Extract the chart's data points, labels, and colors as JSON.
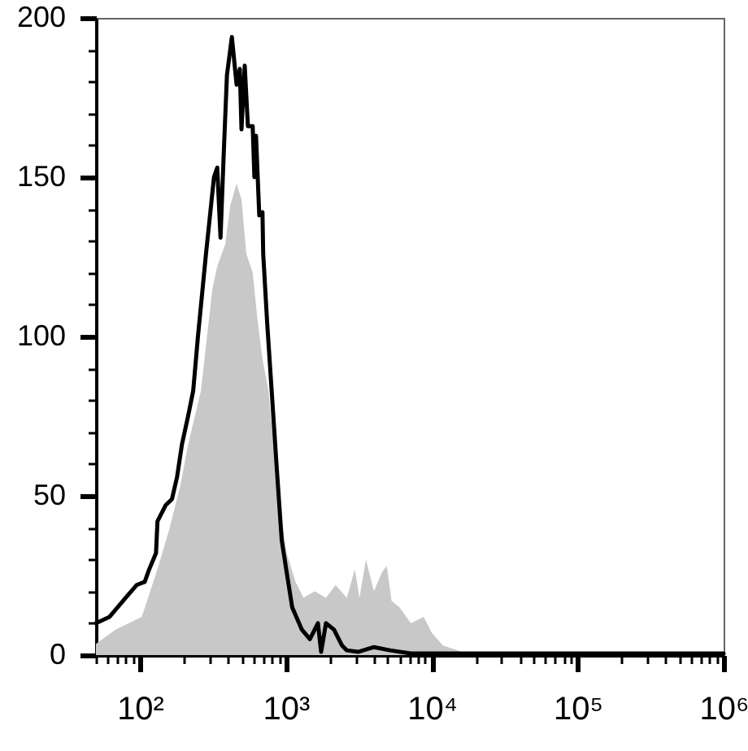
{
  "chart_data": {
    "type": "area",
    "log": "x",
    "xlim": [
      50,
      1000000
    ],
    "ylim": [
      0,
      200
    ],
    "xticks": [
      {
        "value": 50,
        "label": null
      },
      {
        "value": 60,
        "label": null
      },
      {
        "value": 70,
        "label": null
      },
      {
        "value": 80,
        "label": null
      },
      {
        "value": 90,
        "label": null
      },
      {
        "value": 100,
        "label": "10²"
      },
      {
        "value": 200,
        "label": null
      },
      {
        "value": 300,
        "label": null
      },
      {
        "value": 400,
        "label": null
      },
      {
        "value": 500,
        "label": null
      },
      {
        "value": 600,
        "label": null
      },
      {
        "value": 700,
        "label": null
      },
      {
        "value": 800,
        "label": null
      },
      {
        "value": 900,
        "label": null
      },
      {
        "value": 1000,
        "label": "10³"
      },
      {
        "value": 2000,
        "label": null
      },
      {
        "value": 3000,
        "label": null
      },
      {
        "value": 4000,
        "label": null
      },
      {
        "value": 5000,
        "label": null
      },
      {
        "value": 6000,
        "label": null
      },
      {
        "value": 7000,
        "label": null
      },
      {
        "value": 8000,
        "label": null
      },
      {
        "value": 9000,
        "label": null
      },
      {
        "value": 10000,
        "label": "10⁴"
      },
      {
        "value": 20000,
        "label": null
      },
      {
        "value": 30000,
        "label": null
      },
      {
        "value": 40000,
        "label": null
      },
      {
        "value": 50000,
        "label": null
      },
      {
        "value": 60000,
        "label": null
      },
      {
        "value": 70000,
        "label": null
      },
      {
        "value": 80000,
        "label": null
      },
      {
        "value": 90000,
        "label": null
      },
      {
        "value": 100000,
        "label": "10⁵"
      },
      {
        "value": 200000,
        "label": null
      },
      {
        "value": 300000,
        "label": null
      },
      {
        "value": 400000,
        "label": null
      },
      {
        "value": 500000,
        "label": null
      },
      {
        "value": 600000,
        "label": null
      },
      {
        "value": 700000,
        "label": null
      },
      {
        "value": 800000,
        "label": null
      },
      {
        "value": 900000,
        "label": null
      },
      {
        "value": 1000000,
        "label": "10⁶"
      }
    ],
    "yticks": [
      0,
      {
        "value": 10,
        "label": null
      },
      {
        "value": 20,
        "label": null
      },
      {
        "value": 30,
        "label": null
      },
      {
        "value": 40,
        "label": null
      },
      50,
      {
        "value": 60,
        "label": null
      },
      {
        "value": 70,
        "label": null
      },
      {
        "value": 80,
        "label": null
      },
      {
        "value": 90,
        "label": null
      },
      100,
      {
        "value": 110,
        "label": null
      },
      {
        "value": 120,
        "label": null
      },
      {
        "value": 130,
        "label": null
      },
      {
        "value": 140,
        "label": null
      },
      150,
      {
        "value": 160,
        "label": null
      },
      {
        "value": 170,
        "label": null
      },
      {
        "value": 180,
        "label": null
      },
      {
        "value": 190,
        "label": null
      },
      200
    ],
    "series": [
      {
        "color": "#c8c8c8",
        "x": [
          50,
          68,
          103,
          132,
          158,
          189,
          214,
          262,
          314,
          339,
          385,
          416,
          460,
          497,
          536,
          593,
          641,
          692,
          760,
          891,
          1014,
          1164,
          1321,
          1578,
          1884,
          2193,
          2619,
          2972,
          3200,
          3541,
          4018,
          4560,
          4920,
          5305,
          6020,
          7190,
          8810,
          10000,
          11940,
          16200,
          26800,
          100000,
          1000000
        ],
        "values": [
          3.5,
          8,
          12,
          27,
          39,
          53,
          66,
          83,
          115,
          122,
          129,
          141,
          148,
          143,
          126,
          120,
          105,
          93,
          83,
          49,
          32,
          23,
          18,
          20,
          18,
          22,
          18,
          27,
          18,
          30,
          20,
          26,
          28,
          17,
          15,
          10,
          12,
          7,
          3,
          1,
          0.5,
          0,
          0
        ]
      },
      {
        "type": "line",
        "color": "#000000",
        "x": [
          50,
          62,
          80,
          95,
          108,
          116,
          129,
          132,
          150,
          166,
          180,
          194,
          214,
          232,
          250,
          284,
          322,
          339,
          357,
          376,
          395,
          427,
          460,
          484,
          497,
          523,
          550,
          593,
          609,
          625,
          658,
          692,
          700,
          746,
          800,
          869,
          938,
          1014,
          1106,
          1288,
          1462,
          1660,
          1746,
          1884,
          2138,
          2427,
          2619,
          3126,
          4018,
          5180,
          7190,
          100000,
          1000000
        ],
        "values": [
          10,
          12,
          18,
          22,
          23,
          27,
          32,
          42,
          47,
          49,
          56,
          66,
          75,
          83,
          100,
          126,
          150,
          153,
          131,
          158,
          182,
          194,
          179,
          184,
          165,
          185,
          166,
          166,
          150,
          163,
          138,
          139,
          126,
          104,
          83,
          58,
          36,
          26,
          15,
          8,
          5,
          10,
          1,
          10,
          8,
          3,
          1.5,
          1,
          2.5,
          1.5,
          0.5,
          0.5,
          0.5
        ]
      }
    ]
  }
}
